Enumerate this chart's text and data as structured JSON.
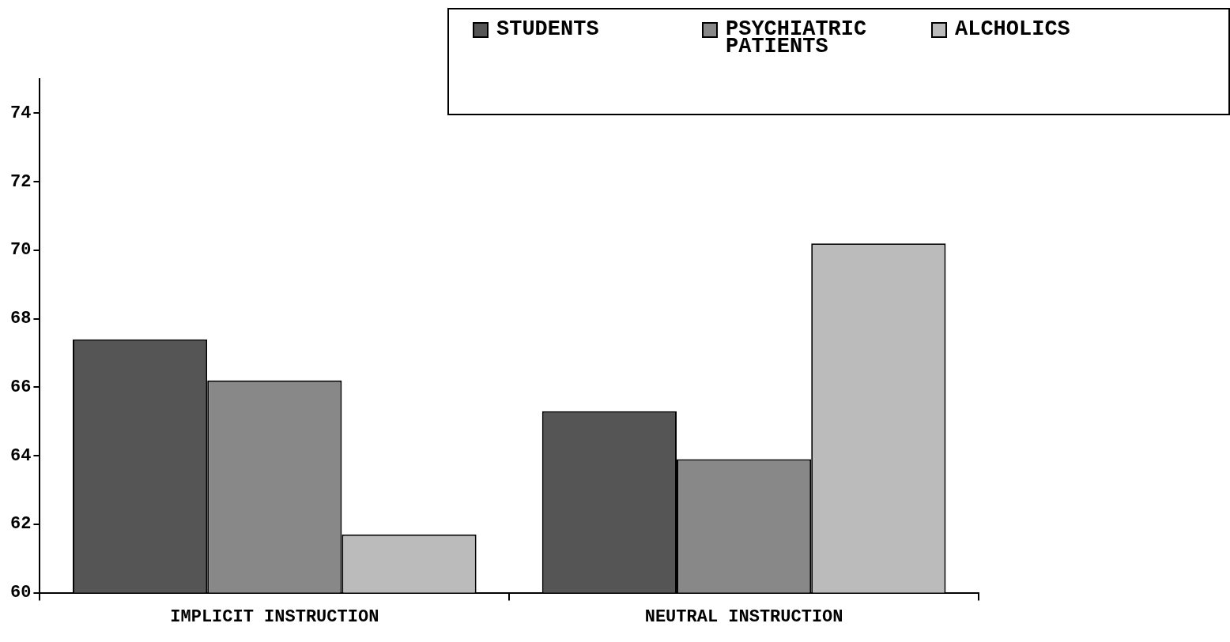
{
  "chart_data": {
    "type": "bar",
    "categories": [
      "IMPLICIT INSTRUCTION",
      "NEUTRAL INSTRUCTION"
    ],
    "series": [
      {
        "name": "STUDENTS",
        "color": "#555555",
        "values": [
          67.4,
          65.3
        ]
      },
      {
        "name": "PSYCHIATRIC PATIENTS",
        "color": "#888888",
        "values": [
          66.2,
          63.9
        ]
      },
      {
        "name": "ALCHOLICS",
        "color": "#bbbbbb",
        "values": [
          61.7,
          70.2
        ]
      }
    ],
    "ylim": [
      60,
      75
    ],
    "yticks": [
      60,
      62,
      64,
      66,
      68,
      70,
      72,
      74
    ],
    "grid": false,
    "legend": "top right"
  }
}
